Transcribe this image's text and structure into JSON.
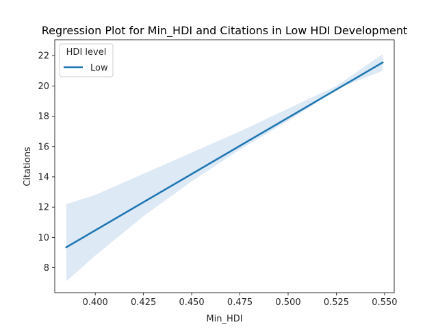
{
  "chart_data": {
    "type": "line",
    "title": "Regression Plot for Min_HDI and Citations in Low HDI Development",
    "xlabel": "Min_HDI",
    "ylabel": "Citations",
    "xlim": [
      0.379,
      0.555
    ],
    "ylim": [
      6.35,
      23.05
    ],
    "xticks": [
      0.4,
      0.425,
      0.45,
      0.475,
      0.5,
      0.525,
      0.55
    ],
    "xtick_labels": [
      "0.400",
      "0.425",
      "0.450",
      "0.475",
      "0.500",
      "0.525",
      "0.550"
    ],
    "yticks": [
      8,
      10,
      12,
      14,
      16,
      18,
      20,
      22
    ],
    "ytick_labels": [
      "8",
      "10",
      "12",
      "14",
      "16",
      "18",
      "20",
      "22"
    ],
    "grid": false,
    "legend": {
      "title": "HDI level",
      "placement": "top-left",
      "entries": [
        "Low"
      ]
    },
    "series": [
      {
        "name": "Low",
        "color": "#1f77b4",
        "band_color": "#dde9f4",
        "x": [
          0.385,
          0.549
        ],
        "y": [
          9.35,
          21.55
        ],
        "ci_x": [
          0.385,
          0.4,
          0.425,
          0.45,
          0.475,
          0.5,
          0.51,
          0.525,
          0.549
        ],
        "ci_lower": [
          7.1,
          8.8,
          11.4,
          13.7,
          15.8,
          17.7,
          18.5,
          19.8,
          21.0
        ],
        "ci_upper": [
          12.2,
          12.8,
          14.2,
          15.6,
          17.0,
          18.5,
          19.1,
          20.0,
          22.1
        ]
      }
    ]
  }
}
